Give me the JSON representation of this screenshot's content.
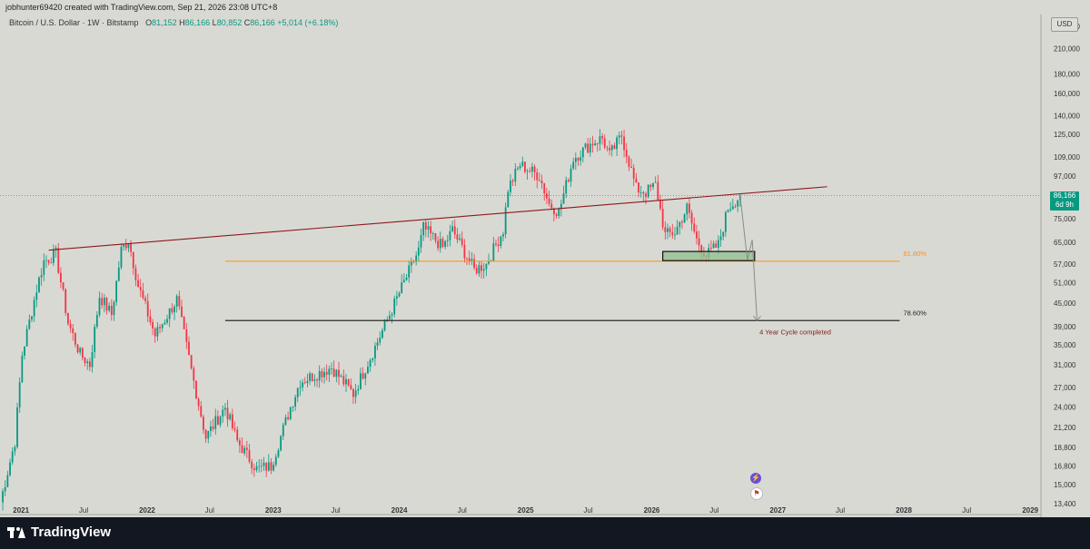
{
  "header": {
    "text": "jobhunter69420 created with TradingView.com, Sep 21, 2026 23:08 UTC+8"
  },
  "legend": {
    "symbol": "Bitcoin / U.S. Dollar · 1W · Bitstamp",
    "o_label": "O",
    "o": "81,152",
    "h_label": "H",
    "h": "86,166",
    "l_label": "L",
    "l": "80,852",
    "c_label": "C",
    "c": "86,166",
    "change": "+5,014 (+6.18%)"
  },
  "currency": "USD",
  "price_badge": {
    "price": "86,166",
    "countdown": "6d 9h"
  },
  "brand": "TradingView",
  "colors": {
    "up": "#089981",
    "down": "#f23645",
    "trendline": "#8b1a1a",
    "fib_618": "#f7931a",
    "fib_786": "#2b2b2b",
    "zone": "#8fbf8f",
    "background": "#d9d9d4"
  },
  "chart_data": {
    "type": "candlestick",
    "y_scale": "log",
    "ylim": [
      12600,
      255000
    ],
    "y_ticks": [
      13400,
      15000,
      16800,
      18800,
      21200,
      24000,
      27000,
      31000,
      35000,
      39000,
      45000,
      51000,
      57000,
      65000,
      75000,
      86000,
      97000,
      109000,
      125000,
      140000,
      160000,
      180000,
      210000,
      240000
    ],
    "y_tick_labels": [
      "13,400",
      "15,000",
      "16,800",
      "18,800",
      "21,200",
      "24,000",
      "27,000",
      "31,000",
      "35,000",
      "39,000",
      "45,000",
      "51,000",
      "57,000",
      "65,000",
      "75,000",
      "86,000",
      "97,000",
      "109,000",
      "125,000",
      "140,000",
      "160,000",
      "180,000",
      "210,000",
      "240,000"
    ],
    "x_range": [
      "2020-11-01",
      "2029-02-01"
    ],
    "x_ticks": [
      "2021-01-01",
      "2021-07-01",
      "2022-01-01",
      "2022-07-01",
      "2023-01-01",
      "2023-07-01",
      "2024-01-01",
      "2024-07-01",
      "2025-01-01",
      "2025-07-01",
      "2026-01-01",
      "2026-07-01",
      "2027-01-01",
      "2027-07-01",
      "2028-01-01",
      "2028-07-01",
      "2029-01-01"
    ],
    "x_tick_labels": [
      "2021",
      "Jul",
      "2022",
      "Jul",
      "2023",
      "Jul",
      "2024",
      "Jul",
      "2025",
      "Jul",
      "2026",
      "Jul",
      "2027",
      "Jul",
      "2028",
      "Jul",
      "2029"
    ],
    "candles_date_range": [
      "2020-11-02",
      "2026-09-14"
    ],
    "price_path": [
      [
        "2020-11-02",
        13500
      ],
      [
        "2020-12-14",
        19500
      ],
      [
        "2021-01-04",
        33000
      ],
      [
        "2021-02-15",
        49000
      ],
      [
        "2021-03-08",
        58000
      ],
      [
        "2021-04-12",
        60500
      ],
      [
        "2021-05-17",
        40000
      ],
      [
        "2021-06-21",
        33000
      ],
      [
        "2021-07-19",
        31000
      ],
      [
        "2021-08-16",
        47000
      ],
      [
        "2021-09-20",
        42000
      ],
      [
        "2021-10-18",
        62000
      ],
      [
        "2021-11-08",
        66000
      ],
      [
        "2021-12-06",
        50000
      ],
      [
        "2022-01-24",
        37000
      ],
      [
        "2022-03-28",
        46000
      ],
      [
        "2022-05-09",
        30000
      ],
      [
        "2022-06-20",
        20000
      ],
      [
        "2022-08-15",
        24000
      ],
      [
        "2022-09-19",
        19500
      ],
      [
        "2022-11-14",
        16500
      ],
      [
        "2022-12-26",
        16800
      ],
      [
        "2023-02-20",
        24000
      ],
      [
        "2023-03-20",
        28000
      ],
      [
        "2023-06-19",
        30500
      ],
      [
        "2023-08-21",
        26000
      ],
      [
        "2023-10-23",
        34500
      ],
      [
        "2023-12-04",
        42000
      ],
      [
        "2024-02-26",
        62000
      ],
      [
        "2024-03-11",
        71000
      ],
      [
        "2024-05-06",
        63000
      ],
      [
        "2024-06-03",
        70000
      ],
      [
        "2024-08-05",
        55000
      ],
      [
        "2024-09-09",
        57000
      ],
      [
        "2024-10-28",
        70000
      ],
      [
        "2024-11-11",
        90000
      ],
      [
        "2024-12-16",
        104000
      ],
      [
        "2025-02-10",
        97000
      ],
      [
        "2025-03-10",
        82000
      ],
      [
        "2025-04-07",
        78000
      ],
      [
        "2025-05-19",
        108000
      ],
      [
        "2025-07-14",
        119000
      ],
      [
        "2025-08-11",
        122000
      ],
      [
        "2025-09-01",
        110000
      ],
      [
        "2025-10-06",
        124000
      ],
      [
        "2025-11-17",
        90000
      ],
      [
        "2025-12-15",
        88000
      ],
      [
        "2026-01-12",
        92000
      ],
      [
        "2026-02-09",
        68000
      ],
      [
        "2026-03-09",
        69000
      ],
      [
        "2026-04-13",
        80000
      ],
      [
        "2026-05-11",
        66000
      ],
      [
        "2026-06-08",
        60000
      ],
      [
        "2026-07-13",
        64000
      ],
      [
        "2026-08-10",
        80000
      ],
      [
        "2026-09-14",
        86166
      ]
    ],
    "trendline": {
      "from": [
        "2021-03-22",
        62000
      ],
      "to": [
        "2027-05-24",
        91000
      ]
    },
    "fib_levels": [
      {
        "label": "61.80%",
        "price": 58000,
        "from": "2022-08-15",
        "to": "2027-12-20"
      },
      {
        "label": "78.60%",
        "price": 40500,
        "from": "2022-08-15",
        "to": "2027-12-20"
      }
    ],
    "zone": {
      "from": "2026-02-02",
      "to": "2026-10-26",
      "low": 58200,
      "high": 61500
    },
    "projection": {
      "path": [
        [
          "2026-09-14",
          86166
        ],
        [
          "2026-10-05",
          58500
        ],
        [
          "2026-10-19",
          66000
        ],
        [
          "2026-11-02",
          40500
        ]
      ]
    },
    "annotation": {
      "text": "4 Year Cycle completed",
      "date": "2026-11-09",
      "price": 38500
    },
    "last_price": 86166
  }
}
